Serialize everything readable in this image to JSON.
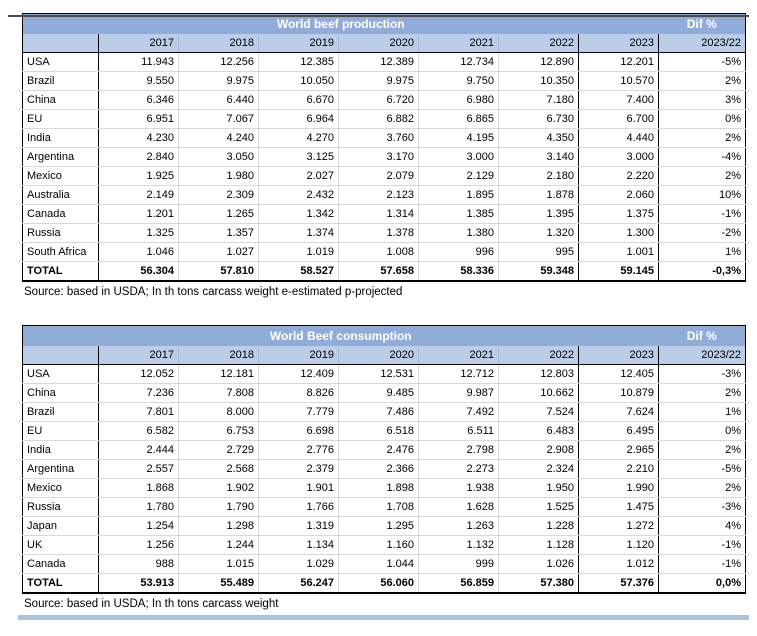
{
  "colors": {
    "header_blue": "#92ACD9",
    "subheader_blue": "#BCCDE8",
    "bottom_bar_blue": "#A8C2E4",
    "grid_line": "#D9D9D9"
  },
  "tables": [
    {
      "title": "World beef production",
      "dif_header": "Dif %",
      "dif_subheader": "2023/22",
      "years": [
        "2017",
        "2018",
        "2019",
        "2020",
        "2021",
        "2022",
        "2023"
      ],
      "rows": [
        {
          "label": "USA",
          "values": [
            "11.943",
            "12.256",
            "12.385",
            "12.389",
            "12.734",
            "12.890",
            "12.201"
          ],
          "dif": "-5%"
        },
        {
          "label": "Brazil",
          "values": [
            "9.550",
            "9.975",
            "10.050",
            "9.975",
            "9.750",
            "10.350",
            "10.570"
          ],
          "dif": "2%"
        },
        {
          "label": "China",
          "values": [
            "6.346",
            "6.440",
            "6.670",
            "6.720",
            "6.980",
            "7.180",
            "7.400"
          ],
          "dif": "3%"
        },
        {
          "label": "EU",
          "values": [
            "6.951",
            "7.067",
            "6.964",
            "6.882",
            "6.865",
            "6.730",
            "6.700"
          ],
          "dif": "0%"
        },
        {
          "label": "India",
          "values": [
            "4.230",
            "4.240",
            "4.270",
            "3.760",
            "4.195",
            "4.350",
            "4.440"
          ],
          "dif": "2%"
        },
        {
          "label": "Argentina",
          "values": [
            "2.840",
            "3.050",
            "3.125",
            "3.170",
            "3.000",
            "3.140",
            "3.000"
          ],
          "dif": "-4%"
        },
        {
          "label": "Mexico",
          "values": [
            "1.925",
            "1.980",
            "2.027",
            "2.079",
            "2.129",
            "2.180",
            "2.220"
          ],
          "dif": "2%"
        },
        {
          "label": "Australia",
          "values": [
            "2.149",
            "2.309",
            "2.432",
            "2.123",
            "1.895",
            "1.878",
            "2.060"
          ],
          "dif": "10%"
        },
        {
          "label": "Canada",
          "values": [
            "1.201",
            "1.265",
            "1.342",
            "1.314",
            "1.385",
            "1.395",
            "1.375"
          ],
          "dif": "-1%"
        },
        {
          "label": "Russia",
          "values": [
            "1.325",
            "1.357",
            "1.374",
            "1.378",
            "1.380",
            "1.320",
            "1.300"
          ],
          "dif": "-2%"
        },
        {
          "label": "South Africa",
          "values": [
            "1.046",
            "1.027",
            "1.019",
            "1.008",
            "996",
            "995",
            "1.001"
          ],
          "dif": "1%"
        }
      ],
      "total_row": {
        "label": "TOTAL",
        "values": [
          "56.304",
          "57.810",
          "58.527",
          "57.658",
          "58.336",
          "59.348",
          "59.145"
        ],
        "dif": "-0,3%"
      },
      "source": "Source: based in USDA; In th tons carcass weight e-estimated p-projected"
    },
    {
      "title": "World Beef consumption",
      "dif_header": "Dif %",
      "dif_subheader": "2023/22",
      "years": [
        "2017",
        "2018",
        "2019",
        "2020",
        "2021",
        "2022",
        "2023"
      ],
      "rows": [
        {
          "label": "USA",
          "values": [
            "12.052",
            "12.181",
            "12.409",
            "12.531",
            "12.712",
            "12.803",
            "12.405"
          ],
          "dif": "-3%"
        },
        {
          "label": "China",
          "values": [
            "7.236",
            "7.808",
            "8.826",
            "9.485",
            "9.987",
            "10.662",
            "10.879"
          ],
          "dif": "2%"
        },
        {
          "label": "Brazil",
          "values": [
            "7.801",
            "8.000",
            "7.779",
            "7.486",
            "7.492",
            "7.524",
            "7.624"
          ],
          "dif": "1%"
        },
        {
          "label": "EU",
          "values": [
            "6.582",
            "6.753",
            "6.698",
            "6.518",
            "6.511",
            "6.483",
            "6.495"
          ],
          "dif": "0%"
        },
        {
          "label": "India",
          "values": [
            "2.444",
            "2.729",
            "2.776",
            "2.476",
            "2.798",
            "2.908",
            "2.965"
          ],
          "dif": "2%"
        },
        {
          "label": "Argentina",
          "values": [
            "2.557",
            "2.568",
            "2.379",
            "2.366",
            "2.273",
            "2.324",
            "2.210"
          ],
          "dif": "-5%"
        },
        {
          "label": "Mexico",
          "values": [
            "1.868",
            "1.902",
            "1.901",
            "1.898",
            "1.938",
            "1.950",
            "1.990"
          ],
          "dif": "2%"
        },
        {
          "label": "Russia",
          "values": [
            "1.780",
            "1.790",
            "1.766",
            "1.708",
            "1.628",
            "1.525",
            "1.475"
          ],
          "dif": "-3%"
        },
        {
          "label": "Japan",
          "values": [
            "1.254",
            "1.298",
            "1.319",
            "1.295",
            "1.263",
            "1.228",
            "1.272"
          ],
          "dif": "4%"
        },
        {
          "label": "UK",
          "values": [
            "1.256",
            "1.244",
            "1.134",
            "1.160",
            "1.132",
            "1.128",
            "1.120"
          ],
          "dif": "-1%"
        },
        {
          "label": "Canada",
          "values": [
            "988",
            "1.015",
            "1.029",
            "1.044",
            "999",
            "1.026",
            "1.012"
          ],
          "dif": "-1%"
        }
      ],
      "total_row": {
        "label": "TOTAL",
        "values": [
          "53.913",
          "55.489",
          "56.247",
          "56.060",
          "56.859",
          "57.380",
          "57.376"
        ],
        "dif": "0,0%"
      },
      "source": "Source: based in USDA; In th tons carcass weight"
    }
  ]
}
